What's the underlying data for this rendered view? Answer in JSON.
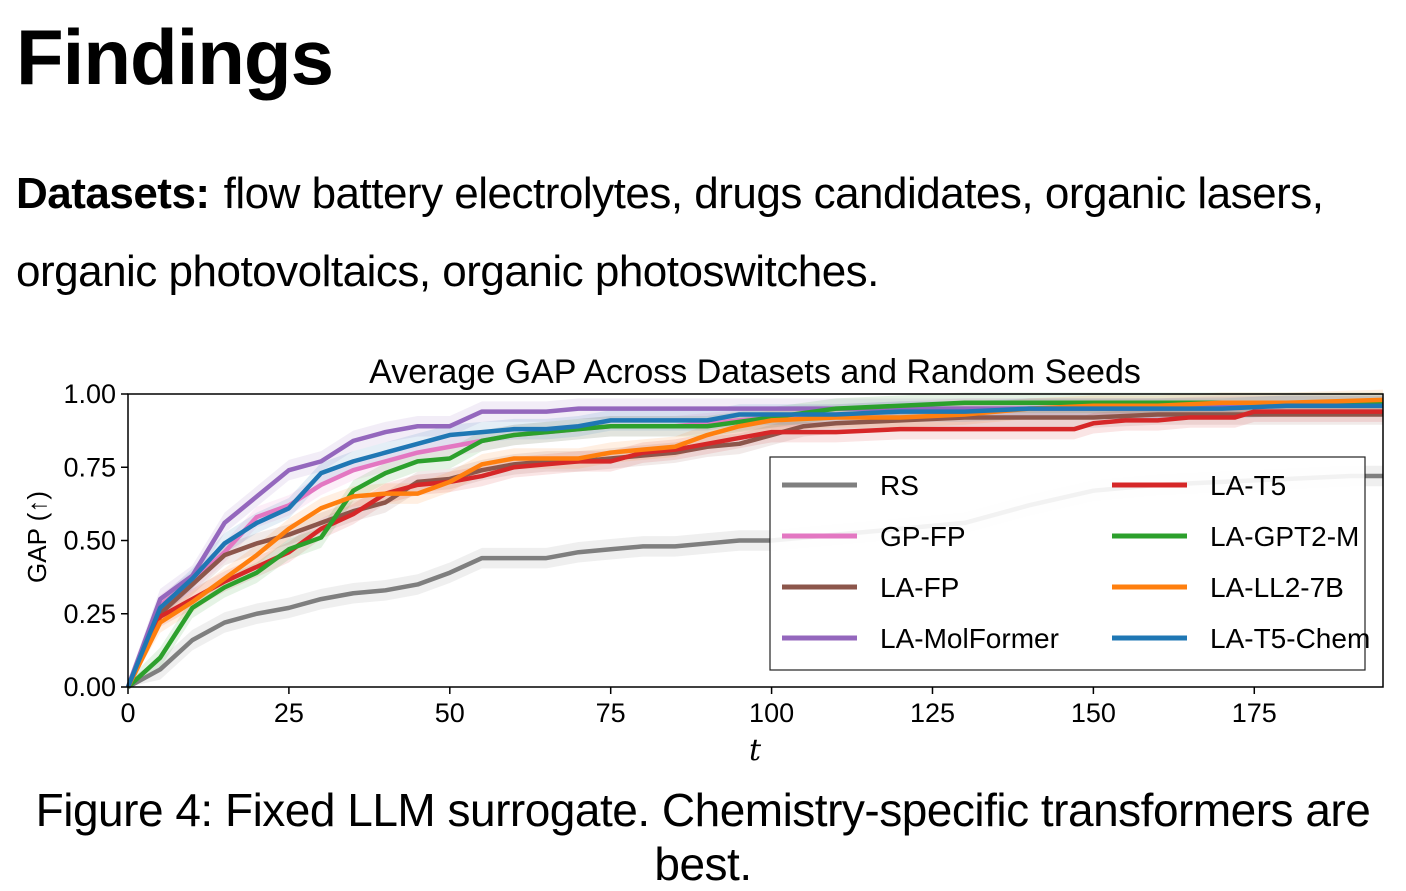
{
  "heading": "Findings",
  "datasets": {
    "label": "Datasets:",
    "text": "flow battery electrolytes, drugs candidates, organic lasers, organic photovoltaics, organic photoswitches."
  },
  "caption": "Figure 4: Fixed LLM surrogate. Chemistry-specific transformers are best.",
  "chart_data": {
    "type": "line",
    "title": "Average GAP Across Datasets and Random Seeds",
    "xlabel": "t",
    "ylabel": "GAP (↑)",
    "xlim": [
      0,
      195
    ],
    "ylim": [
      0,
      1.0
    ],
    "xticks": [
      0,
      25,
      50,
      75,
      100,
      125,
      150,
      175
    ],
    "yticks": [
      "0.00",
      "0.25",
      "0.50",
      "0.75",
      "1.00"
    ],
    "grid": false,
    "legend_position": "lower-right",
    "legend_columns": 2,
    "series": [
      {
        "name": "RS",
        "color": "#7f7f7f",
        "x": [
          0,
          5,
          10,
          15,
          20,
          25,
          30,
          35,
          40,
          45,
          50,
          55,
          60,
          65,
          70,
          75,
          80,
          85,
          90,
          95,
          100,
          110,
          120,
          130,
          140,
          150,
          160,
          170,
          180,
          190,
          195
        ],
        "y": [
          0,
          0.06,
          0.16,
          0.22,
          0.25,
          0.27,
          0.3,
          0.32,
          0.33,
          0.35,
          0.39,
          0.44,
          0.44,
          0.44,
          0.46,
          0.47,
          0.48,
          0.48,
          0.49,
          0.5,
          0.5,
          0.52,
          0.54,
          0.56,
          0.62,
          0.67,
          0.69,
          0.7,
          0.71,
          0.72,
          0.72
        ]
      },
      {
        "name": "GP-FP",
        "color": "#e377c2",
        "x": [
          0,
          5,
          10,
          15,
          20,
          25,
          30,
          35,
          40,
          45,
          50,
          55,
          60,
          65,
          70,
          75,
          80,
          85,
          90,
          95,
          100,
          110,
          120,
          130,
          140,
          150,
          160,
          170,
          180,
          195
        ],
        "y": [
          0,
          0.28,
          0.36,
          0.46,
          0.58,
          0.62,
          0.69,
          0.74,
          0.77,
          0.8,
          0.82,
          0.84,
          0.86,
          0.87,
          0.88,
          0.89,
          0.89,
          0.89,
          0.9,
          0.91,
          0.92,
          0.93,
          0.94,
          0.95,
          0.95,
          0.95,
          0.95,
          0.96,
          0.96,
          0.96
        ]
      },
      {
        "name": "LA-FP",
        "color": "#8c564b",
        "x": [
          0,
          5,
          10,
          15,
          20,
          25,
          30,
          35,
          40,
          45,
          50,
          55,
          60,
          65,
          70,
          75,
          80,
          85,
          90,
          95,
          100,
          105,
          110,
          120,
          130,
          140,
          150,
          160,
          170,
          180,
          195
        ],
        "y": [
          0,
          0.25,
          0.35,
          0.45,
          0.49,
          0.52,
          0.56,
          0.6,
          0.63,
          0.7,
          0.71,
          0.74,
          0.76,
          0.77,
          0.77,
          0.78,
          0.79,
          0.8,
          0.82,
          0.83,
          0.86,
          0.89,
          0.9,
          0.91,
          0.92,
          0.92,
          0.92,
          0.93,
          0.93,
          0.93,
          0.93
        ]
      },
      {
        "name": "LA-MolFormer",
        "color": "#9467bd",
        "x": [
          0,
          5,
          10,
          15,
          20,
          25,
          30,
          35,
          40,
          45,
          50,
          55,
          60,
          65,
          70,
          75,
          80,
          90,
          100,
          120,
          140,
          160,
          180,
          195
        ],
        "y": [
          0,
          0.3,
          0.38,
          0.56,
          0.65,
          0.74,
          0.77,
          0.84,
          0.87,
          0.89,
          0.89,
          0.94,
          0.94,
          0.94,
          0.95,
          0.95,
          0.95,
          0.95,
          0.95,
          0.95,
          0.95,
          0.95,
          0.96,
          0.96
        ]
      },
      {
        "name": "LA-T5",
        "color": "#d62728",
        "x": [
          0,
          5,
          10,
          15,
          20,
          25,
          30,
          35,
          40,
          45,
          50,
          55,
          60,
          65,
          70,
          75,
          80,
          85,
          90,
          95,
          100,
          110,
          120,
          130,
          140,
          147,
          150,
          155,
          160,
          165,
          170,
          172,
          175,
          195
        ],
        "y": [
          0,
          0.24,
          0.3,
          0.36,
          0.41,
          0.46,
          0.54,
          0.59,
          0.66,
          0.69,
          0.7,
          0.72,
          0.75,
          0.76,
          0.77,
          0.77,
          0.8,
          0.81,
          0.83,
          0.85,
          0.87,
          0.87,
          0.88,
          0.88,
          0.88,
          0.88,
          0.9,
          0.91,
          0.91,
          0.92,
          0.92,
          0.92,
          0.94,
          0.94
        ]
      },
      {
        "name": "LA-GPT2-M",
        "color": "#2ca02c",
        "x": [
          0,
          5,
          10,
          15,
          20,
          25,
          30,
          35,
          40,
          45,
          50,
          55,
          60,
          65,
          70,
          75,
          80,
          90,
          100,
          110,
          120,
          130,
          140,
          150,
          160,
          170,
          180,
          195
        ],
        "y": [
          0,
          0.1,
          0.27,
          0.34,
          0.39,
          0.47,
          0.51,
          0.67,
          0.73,
          0.77,
          0.78,
          0.84,
          0.86,
          0.87,
          0.88,
          0.89,
          0.89,
          0.89,
          0.92,
          0.95,
          0.96,
          0.97,
          0.97,
          0.97,
          0.97,
          0.97,
          0.97,
          0.97
        ]
      },
      {
        "name": "LA-LL2-7B",
        "color": "#ff7f0e",
        "x": [
          0,
          5,
          10,
          15,
          20,
          25,
          30,
          35,
          40,
          45,
          50,
          55,
          60,
          65,
          70,
          75,
          80,
          85,
          90,
          95,
          100,
          110,
          120,
          130,
          140,
          150,
          160,
          170,
          180,
          195
        ],
        "y": [
          0,
          0.22,
          0.29,
          0.37,
          0.45,
          0.54,
          0.61,
          0.65,
          0.66,
          0.66,
          0.7,
          0.76,
          0.78,
          0.78,
          0.78,
          0.8,
          0.81,
          0.82,
          0.86,
          0.89,
          0.91,
          0.92,
          0.92,
          0.93,
          0.95,
          0.96,
          0.96,
          0.97,
          0.97,
          0.98
        ]
      },
      {
        "name": "LA-T5-Chem",
        "color": "#1f77b4",
        "x": [
          0,
          5,
          10,
          15,
          20,
          25,
          30,
          35,
          40,
          45,
          50,
          55,
          60,
          65,
          70,
          75,
          80,
          90,
          95,
          100,
          110,
          120,
          130,
          140,
          150,
          160,
          170,
          180,
          195
        ],
        "y": [
          0,
          0.27,
          0.37,
          0.49,
          0.56,
          0.61,
          0.73,
          0.77,
          0.8,
          0.83,
          0.86,
          0.87,
          0.88,
          0.88,
          0.89,
          0.91,
          0.91,
          0.91,
          0.93,
          0.93,
          0.93,
          0.94,
          0.94,
          0.95,
          0.95,
          0.95,
          0.95,
          0.96,
          0.96
        ]
      }
    ]
  }
}
